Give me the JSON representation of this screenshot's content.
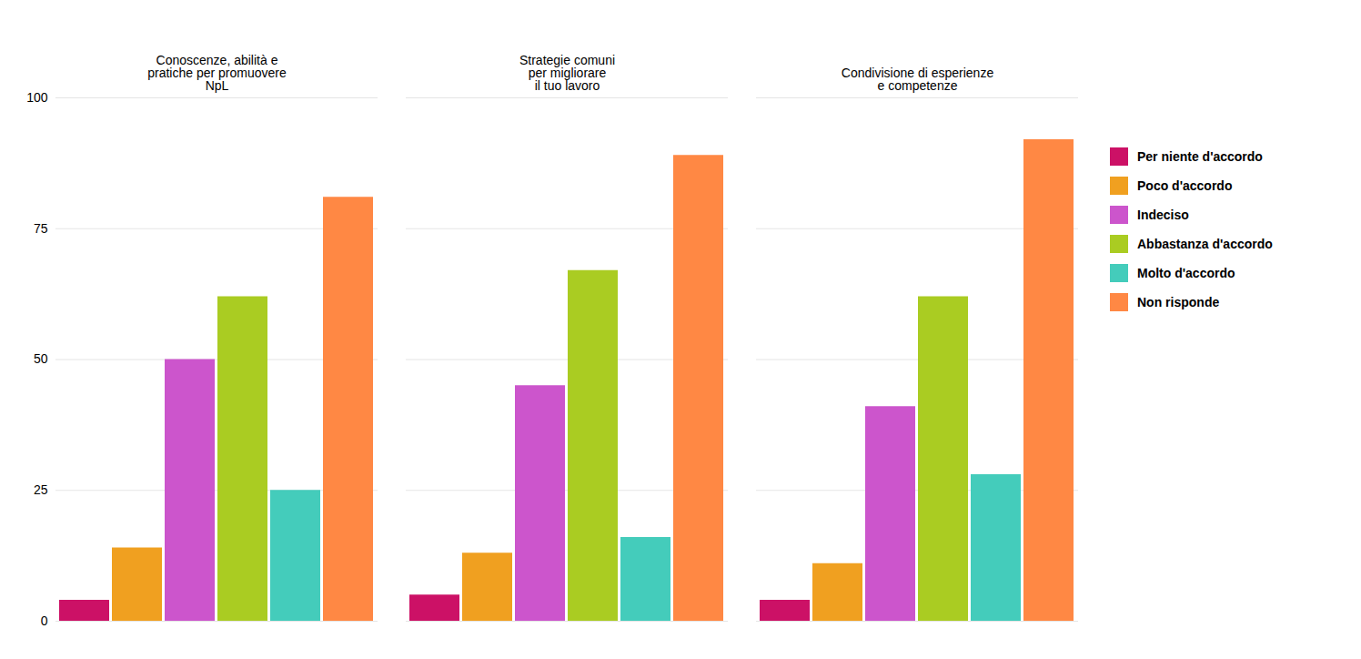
{
  "chart_data": {
    "type": "bar",
    "categories": [
      "Conoscenze, abilità e\npratiche per promuovere\nNpL",
      "Strategie comuni\nper migliorare\nil tuo lavoro",
      "Condivisione di esperienze\ne competenze"
    ],
    "series": [
      {
        "name": "Per niente d'accordo",
        "color": "#cc1166",
        "values": [
          4,
          5,
          4
        ]
      },
      {
        "name": "Poco d'accordo",
        "color": "#f0a020",
        "values": [
          14,
          13,
          11
        ]
      },
      {
        "name": "Indeciso",
        "color": "#cc55cc",
        "values": [
          50,
          45,
          41
        ]
      },
      {
        "name": "Abbastanza d'accordo",
        "color": "#aacc22",
        "values": [
          62,
          67,
          62
        ]
      },
      {
        "name": "Molto d'accordo",
        "color": "#44ccbb",
        "values": [
          25,
          16,
          28
        ]
      },
      {
        "name": "Non risponde",
        "color": "#ff8844",
        "values": [
          81,
          89,
          92
        ]
      }
    ],
    "ylim": [
      0,
      100
    ],
    "yticks": [
      0,
      25,
      50,
      75,
      100
    ],
    "grid": true,
    "legend": "right"
  }
}
